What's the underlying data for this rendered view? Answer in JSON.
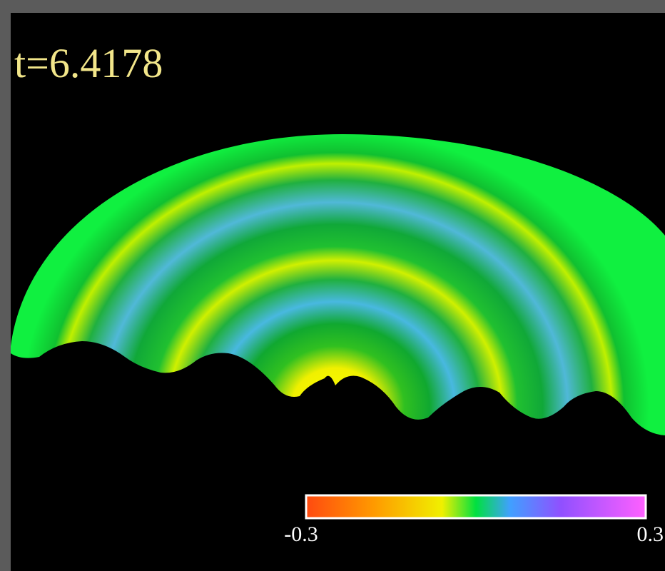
{
  "time_label": "t=6.4178",
  "colorbar": {
    "min": -0.3,
    "max": 0.3
  }
}
